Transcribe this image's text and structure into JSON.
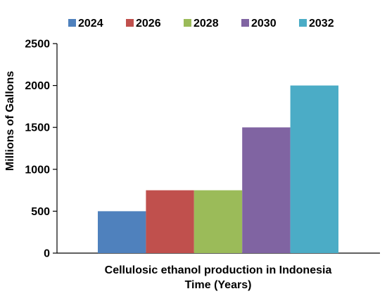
{
  "chart_data": {
    "type": "bar",
    "categories": [
      "Cellulosic ethanol production in Indonesia"
    ],
    "series": [
      {
        "name": "2024",
        "values": [
          500
        ],
        "color": "#4F81BD"
      },
      {
        "name": "2026",
        "values": [
          750
        ],
        "color": "#C0504D"
      },
      {
        "name": "2028",
        "values": [
          750
        ],
        "color": "#9BBB59"
      },
      {
        "name": "2030",
        "values": [
          1500
        ],
        "color": "#8064A2"
      },
      {
        "name": "2032",
        "values": [
          2000
        ],
        "color": "#4BACC6"
      }
    ],
    "xlabel": "Time (Years)",
    "ylabel": "Millions of Gallons",
    "ylim": [
      0,
      2500
    ],
    "yticks": [
      0,
      500,
      1000,
      1500,
      2000,
      2500
    ],
    "grid": false,
    "legend_position": "top"
  }
}
